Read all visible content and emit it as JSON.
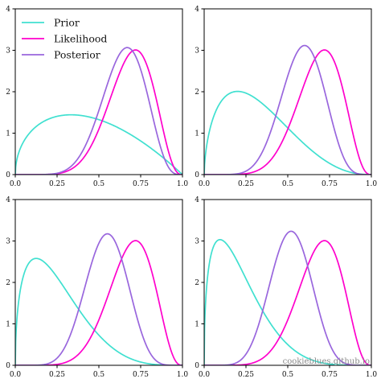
{
  "chart_data": [
    {
      "type": "line",
      "panel": "top-left",
      "x_range": [
        0,
        1
      ],
      "ylim": [
        0,
        4
      ],
      "xticks": [
        "0.0",
        "0.25",
        "0.5",
        "0.75",
        "1.0"
      ],
      "yticks": [
        "0",
        "1",
        "2",
        "3",
        "4"
      ],
      "legend": {
        "placement": "top-left",
        "entries": [
          "Prior",
          "Likelihood",
          "Posterior"
        ]
      },
      "series": [
        {
          "name": "Prior",
          "color": "#40e0d0",
          "distribution": "beta",
          "alpha": 1.5,
          "beta": 2.0
        },
        {
          "name": "Likelihood",
          "color": "#ff00cc",
          "distribution": "beta",
          "alpha": 8.3,
          "beta": 3.85
        },
        {
          "name": "Posterior",
          "color": "#9966dd",
          "distribution": "beta",
          "alpha": 8.8,
          "beta": 4.85
        }
      ]
    },
    {
      "type": "line",
      "panel": "top-right",
      "x_range": [
        0,
        1
      ],
      "ylim": [
        0,
        4
      ],
      "xticks": [
        "0.0",
        "0.25",
        "0.5",
        "0.75",
        "1.0"
      ],
      "yticks": [
        "0",
        "1",
        "2",
        "3",
        "4"
      ],
      "series": [
        {
          "name": "Prior",
          "color": "#40e0d0",
          "distribution": "beta",
          "alpha": 1.6,
          "beta": 3.4
        },
        {
          "name": "Likelihood",
          "color": "#ff00cc",
          "distribution": "beta",
          "alpha": 8.3,
          "beta": 3.85
        },
        {
          "name": "Posterior",
          "color": "#9966dd",
          "distribution": "beta",
          "alpha": 8.9,
          "beta": 6.25
        }
      ]
    },
    {
      "type": "line",
      "panel": "bottom-left",
      "x_range": [
        0,
        1
      ],
      "ylim": [
        0,
        4
      ],
      "xticks": [
        "0.0",
        "0.25",
        "0.5",
        "0.75",
        "1.0"
      ],
      "yticks": [
        "0",
        "1",
        "2",
        "3",
        "4"
      ],
      "series": [
        {
          "name": "Prior",
          "color": "#40e0d0",
          "distribution": "beta",
          "alpha": 1.5,
          "beta": 4.5
        },
        {
          "name": "Likelihood",
          "color": "#ff00cc",
          "distribution": "beta",
          "alpha": 8.3,
          "beta": 3.85
        },
        {
          "name": "Posterior",
          "color": "#9966dd",
          "distribution": "beta",
          "alpha": 8.8,
          "beta": 7.35
        }
      ]
    },
    {
      "type": "line",
      "panel": "bottom-right",
      "x_range": [
        0,
        1
      ],
      "ylim": [
        0,
        4
      ],
      "xticks": [
        "0.0",
        "0.25",
        "0.5",
        "0.75",
        "1.0"
      ],
      "yticks": [
        "0",
        "1",
        "2",
        "3",
        "4"
      ],
      "series": [
        {
          "name": "Prior",
          "color": "#40e0d0",
          "distribution": "beta",
          "alpha": 1.45,
          "beta": 5.3
        },
        {
          "name": "Likelihood",
          "color": "#ff00cc",
          "distribution": "beta",
          "alpha": 8.3,
          "beta": 3.85
        },
        {
          "name": "Posterior",
          "color": "#9966dd",
          "distribution": "beta",
          "alpha": 8.75,
          "beta": 8.15
        }
      ]
    }
  ],
  "watermark": "cookieblues.github.io"
}
